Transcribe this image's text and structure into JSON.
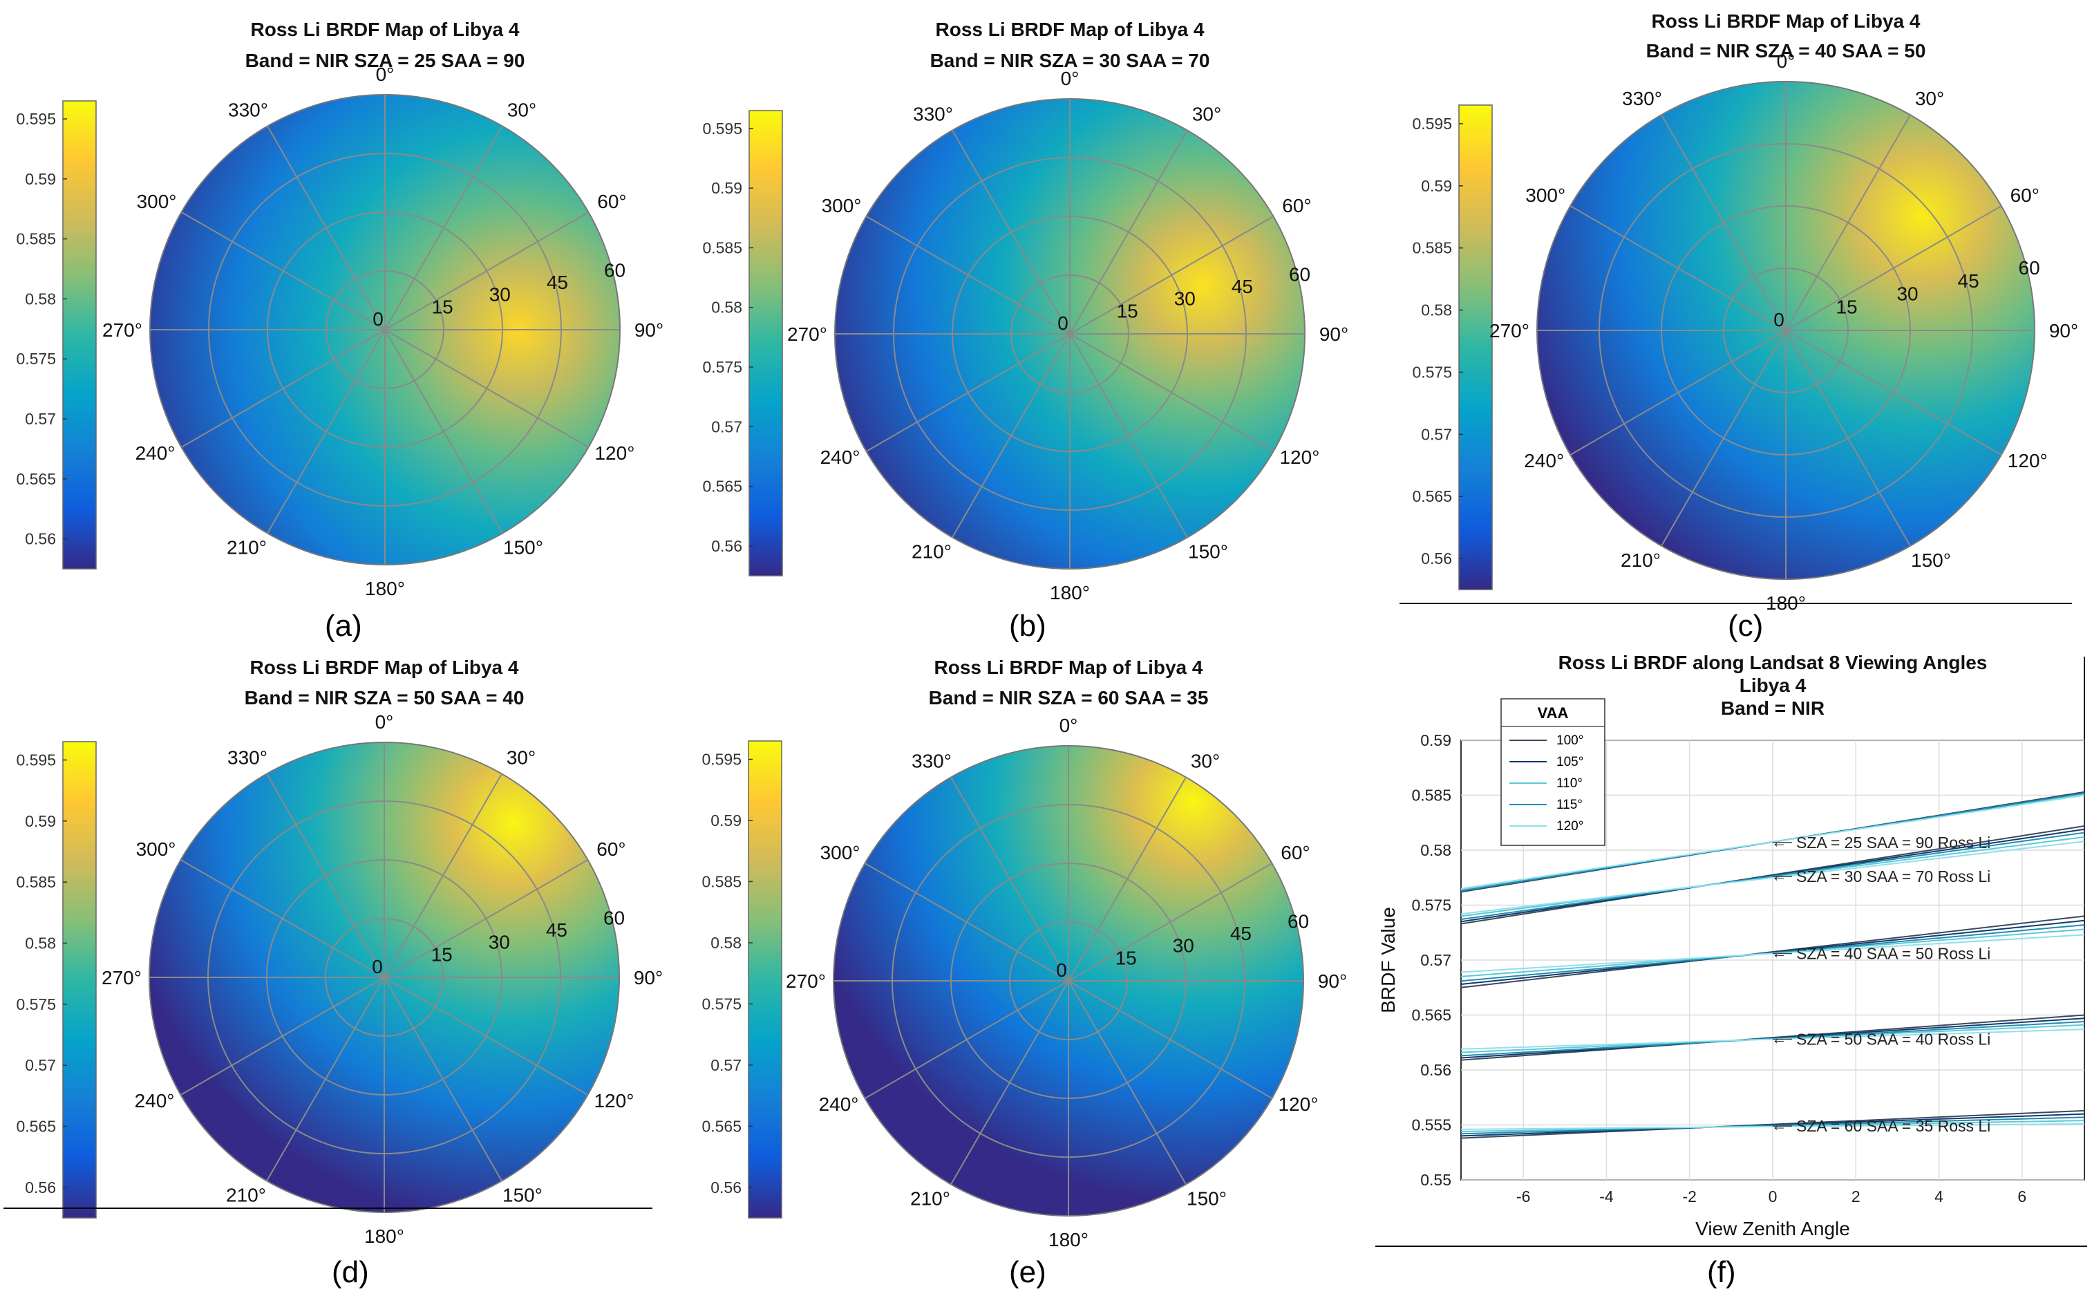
{
  "colormap": {
    "name": "parula",
    "stops": [
      "#352a87",
      "#0f5cdd",
      "#1481d6",
      "#06a4ca",
      "#2eb7a4",
      "#87bf77",
      "#d1bb59",
      "#fec832",
      "#f9fb0e"
    ],
    "range": [
      0.5575,
      0.5965
    ],
    "ticks": [
      "0.56",
      "0.565",
      "0.57",
      "0.575",
      "0.58",
      "0.585",
      "0.59",
      "0.595"
    ]
  },
  "polar_axes": {
    "angle_labels": [
      "0°",
      "30°",
      "60°",
      "90°",
      "120°",
      "150°",
      "180°",
      "210°",
      "240°",
      "270°",
      "300°",
      "330°"
    ],
    "radius_labels": [
      "0",
      "15",
      "30",
      "45",
      "60"
    ]
  },
  "chart_data": [
    {
      "type": "heatmap",
      "label": "(a)",
      "title_line1": "Ross Li BRDF Map of Libya 4",
      "title_line2": "Band = NIR   SZA = 25   SAA = 90",
      "sza": 25,
      "saa": 90,
      "hotspot": {
        "azimuth": 90,
        "zenith": 40,
        "value": 0.592
      },
      "value_range": [
        0.558,
        0.593
      ]
    },
    {
      "type": "heatmap",
      "label": "(b)",
      "title_line1": "Ross Li BRDF Map of Libya 4",
      "title_line2": "Band = NIR   SZA = 30   SAA = 70",
      "sza": 30,
      "saa": 70,
      "hotspot": {
        "azimuth": 70,
        "zenith": 42,
        "value": 0.593
      },
      "value_range": [
        0.557,
        0.594
      ]
    },
    {
      "type": "heatmap",
      "label": "(c)",
      "title_line1": "Ross Li BRDF Map of Libya 4",
      "title_line2": "Band = NIR   SZA = 40   SAA = 50",
      "sza": 40,
      "saa": 50,
      "hotspot": {
        "azimuth": 50,
        "zenith": 50,
        "value": 0.594
      },
      "value_range": [
        0.557,
        0.595
      ]
    },
    {
      "type": "heatmap",
      "label": "(d)",
      "title_line1": "Ross Li BRDF Map of Libya 4",
      "title_line2": "Band = NIR   SZA = 50   SAA = 40",
      "sza": 50,
      "saa": 40,
      "hotspot": {
        "azimuth": 40,
        "zenith": 60,
        "value": 0.595
      },
      "value_range": [
        0.557,
        0.596
      ]
    },
    {
      "type": "heatmap",
      "label": "(e)",
      "title_line1": "Ross Li BRDF Map of Libya 4",
      "title_line2": "Band = NIR   SZA = 60   SAA = 35",
      "sza": 60,
      "saa": 35,
      "hotspot": {
        "azimuth": 35,
        "zenith": 65,
        "value": 0.595
      },
      "value_range": [
        0.556,
        0.596
      ]
    },
    {
      "type": "line",
      "label": "(f)",
      "title": [
        "Ross Li BRDF along Landsat 8 Viewing Angles",
        "Libya 4",
        "Band = NIR"
      ],
      "xlabel": "View Zenith Angle",
      "ylabel": "BRDF Value",
      "xlim": [
        -7.5,
        7.5
      ],
      "ylim": [
        0.55,
        0.59
      ],
      "xticks": [
        -6,
        -4,
        -2,
        0,
        2,
        4,
        6
      ],
      "yticks": [
        0.55,
        0.555,
        0.56,
        0.565,
        0.57,
        0.575,
        0.58,
        0.585,
        0.59
      ],
      "legend": {
        "title": "VAA",
        "position": "top-left",
        "entries": [
          "100°",
          "105°",
          "110°",
          "115°",
          "120°"
        ],
        "colors": [
          "#3a4a5a",
          "#123a6e",
          "#5ec8d8",
          "#1f8db0",
          "#8fe0ec"
        ]
      },
      "groups": [
        {
          "label": "SZA = 25  SAA = 90 Ross Li",
          "center": 0.5807,
          "series": [
            {
              "vaa": "100°",
              "y": [
                0.5762,
                0.5853
              ]
            },
            {
              "vaa": "105°",
              "y": [
                0.5763,
                0.5852
              ]
            },
            {
              "vaa": "110°",
              "y": [
                0.5764,
                0.5851
              ]
            },
            {
              "vaa": "115°",
              "y": [
                0.5763,
                0.5852
              ]
            },
            {
              "vaa": "120°",
              "y": [
                0.5765,
                0.585
              ]
            }
          ]
        },
        {
          "label": "SZA = 30  SAA = 70 Ross Li",
          "center": 0.5776,
          "series": [
            {
              "vaa": "100°",
              "y": [
                0.5733,
                0.5822
              ]
            },
            {
              "vaa": "105°",
              "y": [
                0.5735,
                0.5819
              ]
            },
            {
              "vaa": "110°",
              "y": [
                0.574,
                0.5812
              ]
            },
            {
              "vaa": "115°",
              "y": [
                0.5737,
                0.5816
              ]
            },
            {
              "vaa": "120°",
              "y": [
                0.5742,
                0.5808
              ]
            }
          ]
        },
        {
          "label": "SZA = 40  SAA = 50 Ross Li",
          "center": 0.5706,
          "series": [
            {
              "vaa": "100°",
              "y": [
                0.5675,
                0.574
              ]
            },
            {
              "vaa": "105°",
              "y": [
                0.5678,
                0.5736
              ]
            },
            {
              "vaa": "110°",
              "y": [
                0.5685,
                0.5728
              ]
            },
            {
              "vaa": "115°",
              "y": [
                0.5681,
                0.5732
              ]
            },
            {
              "vaa": "120°",
              "y": [
                0.5689,
                0.5723
              ]
            }
          ]
        },
        {
          "label": "SZA = 50  SAA = 40 Ross Li",
          "center": 0.5628,
          "series": [
            {
              "vaa": "100°",
              "y": [
                0.5609,
                0.565
              ]
            },
            {
              "vaa": "105°",
              "y": [
                0.5611,
                0.5647
              ]
            },
            {
              "vaa": "110°",
              "y": [
                0.5616,
                0.5641
              ]
            },
            {
              "vaa": "115°",
              "y": [
                0.5613,
                0.5644
              ]
            },
            {
              "vaa": "120°",
              "y": [
                0.5619,
                0.5637
              ]
            }
          ]
        },
        {
          "label": "SZA = 60  SAA = 35 Ross Li",
          "center": 0.5549,
          "series": [
            {
              "vaa": "100°",
              "y": [
                0.5538,
                0.5563
              ]
            },
            {
              "vaa": "105°",
              "y": [
                0.554,
                0.556
              ]
            },
            {
              "vaa": "110°",
              "y": [
                0.5544,
                0.5554
              ]
            },
            {
              "vaa": "115°",
              "y": [
                0.5542,
                0.5557
              ]
            },
            {
              "vaa": "120°",
              "y": [
                0.5546,
                0.5551
              ]
            }
          ]
        }
      ]
    }
  ]
}
